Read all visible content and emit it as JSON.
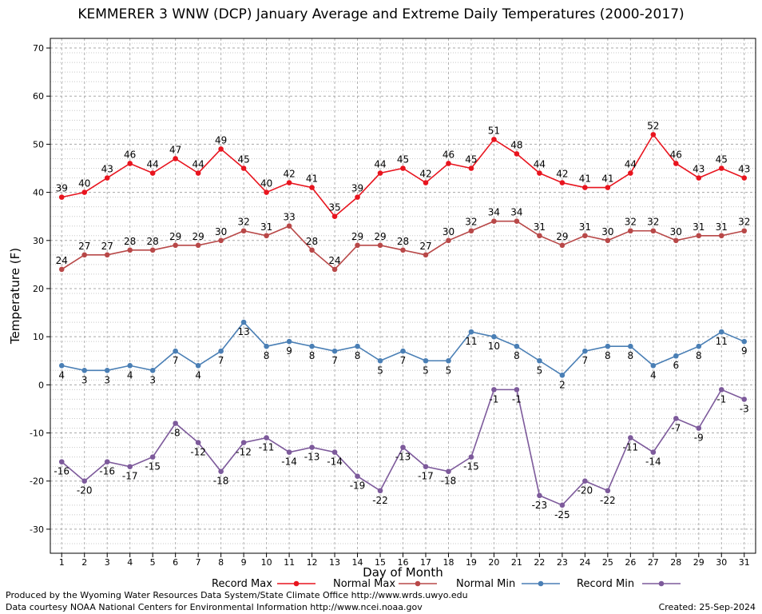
{
  "chart_data": {
    "type": "line",
    "title": "KEMMERER 3 WNW (DCP) January Average and Extreme Daily Temperatures (2000-2017)",
    "xlabel": "Day of Month",
    "ylabel": "Temperature (F)",
    "x": [
      1,
      2,
      3,
      4,
      5,
      6,
      7,
      8,
      9,
      10,
      11,
      12,
      13,
      14,
      15,
      16,
      17,
      18,
      19,
      20,
      21,
      22,
      23,
      24,
      25,
      26,
      27,
      28,
      29,
      30,
      31
    ],
    "xlim": [
      0.5,
      31.5
    ],
    "ylim": [
      -35,
      72
    ],
    "yticks": [
      -30,
      -20,
      -10,
      0,
      10,
      20,
      30,
      40,
      50,
      60,
      70
    ],
    "grid": true,
    "legend_position": "bottom",
    "series": [
      {
        "name": "Record Max",
        "color": "#e8141e",
        "label_position": "above",
        "values": [
          39,
          40,
          43,
          46,
          44,
          47,
          44,
          49,
          45,
          40,
          42,
          41,
          35,
          39,
          44,
          45,
          42,
          46,
          45,
          51,
          48,
          44,
          42,
          41,
          41,
          44,
          52,
          46,
          43,
          45,
          43
        ]
      },
      {
        "name": "Normal Max",
        "color": "#b84848",
        "label_position": "above",
        "values": [
          24,
          27,
          27,
          28,
          28,
          29,
          29,
          30,
          32,
          31,
          33,
          28,
          24,
          29,
          29,
          28,
          27,
          30,
          32,
          34,
          34,
          31,
          29,
          31,
          30,
          32,
          32,
          30,
          31,
          31,
          32
        ]
      },
      {
        "name": "Normal Min",
        "color": "#4a7fb5",
        "label_position": "below",
        "values": [
          4,
          3,
          3,
          4,
          3,
          7,
          4,
          7,
          13,
          8,
          9,
          8,
          7,
          8,
          5,
          7,
          5,
          5,
          11,
          10,
          8,
          5,
          2,
          7,
          8,
          8,
          4,
          6,
          8,
          11,
          9
        ]
      },
      {
        "name": "Record Min",
        "color": "#7d5a9b",
        "label_position": "below",
        "values": [
          -16,
          -20,
          -16,
          -17,
          -15,
          -8,
          -12,
          -18,
          -12,
          -11,
          -14,
          -13,
          -14,
          -19,
          -22,
          -13,
          -17,
          -18,
          -15,
          -1,
          -1,
          -23,
          -25,
          -20,
          -22,
          -11,
          -14,
          -7,
          -9,
          -1,
          -3
        ]
      }
    ]
  },
  "footer": {
    "produced_by": "Produced by the Wyoming Water Resources Data System/State Climate Office http://www.wrds.uwyo.edu",
    "data_courtesy": "Data courtesy NOAA National Centers for Environmental Information http://www.ncei.noaa.gov",
    "created": "Created:  25-Sep-2024"
  }
}
